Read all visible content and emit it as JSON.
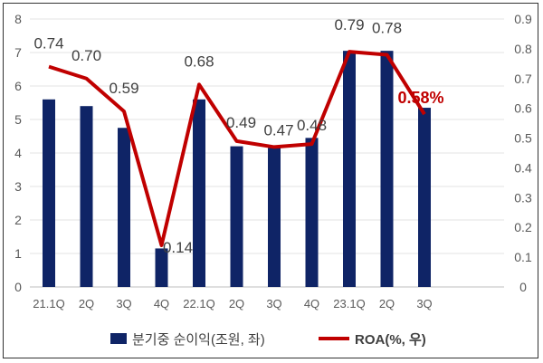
{
  "chart_data": {
    "type": "bar+line",
    "categories": [
      "21.1Q",
      "2Q",
      "3Q",
      "4Q",
      "22.1Q",
      "2Q",
      "3Q",
      "4Q",
      "23.1Q",
      "2Q",
      "3Q"
    ],
    "series": [
      {
        "name": "분기중 순이익(조원, 좌)",
        "type": "bar",
        "axis": "left",
        "color": "#0f2466",
        "values": [
          5.6,
          5.4,
          4.75,
          1.15,
          5.6,
          4.2,
          4.15,
          4.45,
          7.05,
          7.05,
          5.35
        ]
      },
      {
        "name": "ROA(%, 우)",
        "type": "line",
        "axis": "right",
        "color": "#c00000",
        "values": [
          0.74,
          0.7,
          0.59,
          0.14,
          0.68,
          0.49,
          0.47,
          0.48,
          0.79,
          0.78,
          0.58
        ],
        "labels": [
          "0.74",
          "0.70",
          "0.59",
          "0.14",
          "0.68",
          "0.49",
          "0.47",
          "0.48",
          "0.79",
          "0.78",
          "0.58%"
        ]
      }
    ],
    "left_axis": {
      "range": [
        0,
        8
      ],
      "ticks": [
        "0",
        "1",
        "2",
        "3",
        "4",
        "5",
        "6",
        "7",
        "8"
      ]
    },
    "right_axis": {
      "range": [
        0,
        0.9
      ],
      "ticks": [
        "0",
        "0.1",
        "0.2",
        "0.3",
        "0.4",
        "0.5",
        "0.6",
        "0.7",
        "0.8",
        "0.9"
      ]
    },
    "grid": true,
    "legend_placement": "bottom"
  }
}
